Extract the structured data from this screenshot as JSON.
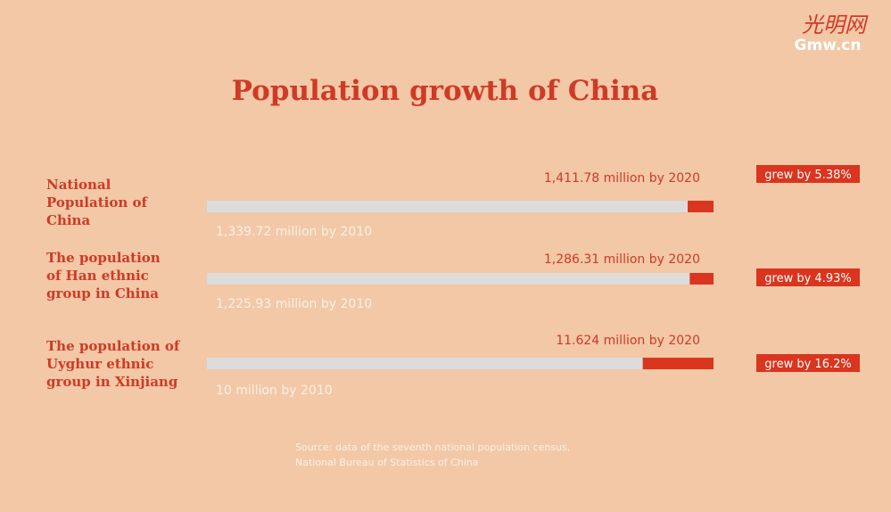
{
  "logo": {
    "mark": "光明网",
    "site": "Gmw.cn"
  },
  "title": "Population growth of China",
  "rows": [
    {
      "label": [
        "National",
        "Population of",
        "China"
      ],
      "value_2020": 1411.78,
      "text_2020": "1,411.78 million by 2020",
      "value_2010": 1339.72,
      "text_2010": "1,339.72 million by 2010",
      "growth": "grew by 5.38%"
    },
    {
      "label": [
        "The population",
        "of Han ethnic",
        "group in China"
      ],
      "value_2020": 1286.31,
      "text_2020": "1,286.31 million by 2020",
      "value_2010": 1225.93,
      "text_2010": "1,225.93 million by 2010",
      "growth": "grew by 4.93%"
    },
    {
      "label": [
        "The population of",
        "Uyghur ethnic",
        "group in Xinjiang"
      ],
      "value_2020": 11.624,
      "text_2020": "11.624 million by 2020",
      "value_2010": 10,
      "text_2010": "10 million by 2010",
      "growth": "grew by 16.2%"
    }
  ],
  "source": [
    "Source: data of the seventh national population census,",
    "National Bureau of Statistics of China"
  ]
}
